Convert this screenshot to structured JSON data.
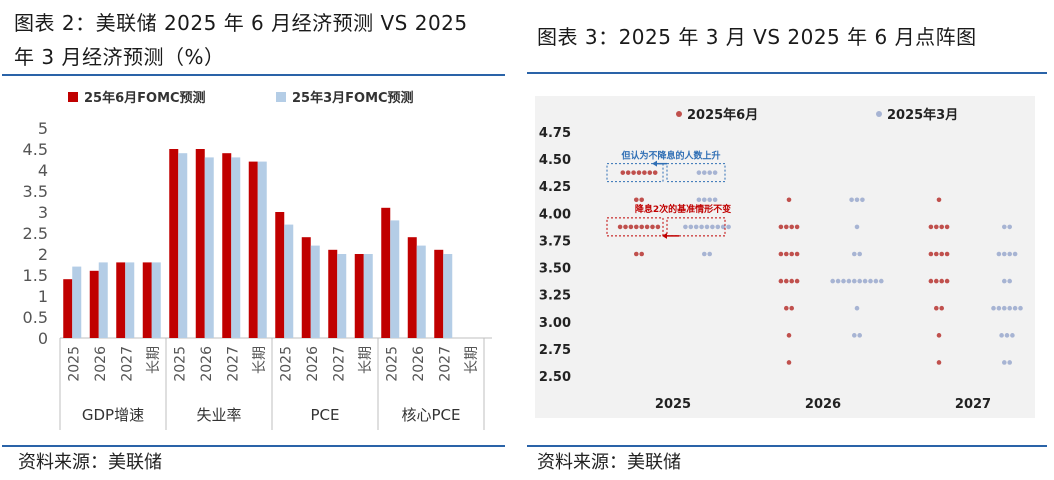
{
  "left": {
    "title_line1": "图表 2：美联储 2025 年 6 月经济预测 VS 2025",
    "title_line2": "年 3 月经济预测（%）",
    "source": "资料来源：美联储",
    "chart_data": {
      "type": "bar",
      "ylim": [
        0,
        5
      ],
      "yticks": [
        "0",
        "0.5",
        "1",
        "1.5",
        "2",
        "2.5",
        "3",
        "3.5",
        "4",
        "4.5",
        "5"
      ],
      "groups": [
        {
          "label": "GDP增速",
          "categories": [
            "2025",
            "2026",
            "2027",
            "长期"
          ]
        },
        {
          "label": "失业率",
          "categories": [
            "2025",
            "2026",
            "2027",
            "长期"
          ]
        },
        {
          "label": "PCE",
          "categories": [
            "2025",
            "2026",
            "2027",
            "长期"
          ]
        },
        {
          "label": "核心PCE",
          "categories": [
            "2025",
            "2026",
            "2027",
            "长期"
          ]
        }
      ],
      "series": [
        {
          "name": "25年6月FOMC预测",
          "color": "#c00000",
          "values": [
            1.4,
            1.6,
            1.8,
            1.8,
            4.5,
            4.5,
            4.4,
            4.2,
            3.0,
            2.4,
            2.1,
            2.0,
            3.1,
            2.4,
            2.1,
            null
          ]
        },
        {
          "name": "25年3月FOMC预测",
          "color": "#b4cde6",
          "values": [
            1.7,
            1.8,
            1.8,
            1.8,
            4.4,
            4.3,
            4.3,
            4.2,
            2.7,
            2.2,
            2.0,
            2.0,
            2.8,
            2.2,
            2.0,
            null
          ]
        }
      ]
    }
  },
  "right": {
    "title": "图表 3：2025 年 3 月 VS 2025 年 6 月点阵图",
    "source": "资料来源：美联储",
    "annotation_top": "但认为不降息的人数上升",
    "annotation_bottom": "降息2次的基准情形不变",
    "chart_data": {
      "type": "scatter",
      "ylim": [
        2.5,
        4.75
      ],
      "yticks": [
        "4.75",
        "4.50",
        "4.25",
        "4.00",
        "3.75",
        "3.50",
        "3.25",
        "3.00",
        "2.75",
        "2.50"
      ],
      "xcategories": [
        "2025",
        "2026",
        "2027"
      ],
      "series": [
        {
          "name": "2025年6月",
          "color": "#c0504d",
          "counts": {
            "2025": {
              "4.375": 7,
              "4.125": 2,
              "3.875": 8,
              "3.625": 2
            },
            "2026": {
              "4.125": 1,
              "3.875": 4,
              "3.625": 4,
              "3.375": 4,
              "3.125": 2,
              "2.875": 1,
              "2.625": 1
            },
            "2027": {
              "4.125": 1,
              "3.875": 4,
              "3.625": 4,
              "3.375": 4,
              "3.125": 2,
              "2.875": 1,
              "2.625": 1
            }
          }
        },
        {
          "name": "2025年3月",
          "color": "#a7b4d3",
          "counts": {
            "2025": {
              "4.375": 4,
              "4.125": 4,
              "3.875": 9,
              "3.625": 2
            },
            "2026": {
              "4.125": 3,
              "3.875": 1,
              "3.625": 2,
              "3.375": 10,
              "3.125": 1,
              "2.875": 2
            },
            "2027": {
              "3.875": 2,
              "3.625": 4,
              "3.375": 2,
              "3.125": 6,
              "2.875": 3,
              "2.625": 2
            }
          }
        }
      ]
    }
  }
}
